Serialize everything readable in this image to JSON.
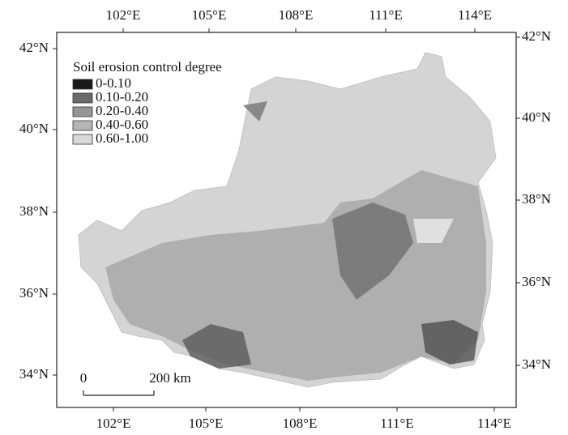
{
  "axes": {
    "top": [
      "102°E",
      "105°E",
      "108°E",
      "111°E",
      "114°E"
    ],
    "bottom": [
      "102°E",
      "105°E",
      "108°E",
      "111°E",
      "114°E"
    ],
    "left": [
      "42°N",
      "40°N",
      "38°N",
      "36°N",
      "34°N"
    ],
    "right": [
      "42°N",
      "40°N",
      "38°N",
      "36°N",
      "34°N"
    ]
  },
  "legend": {
    "title": "Soil erosion control degree",
    "items": [
      {
        "label": "0-0.10",
        "color": "#1a1a1a"
      },
      {
        "label": "0.10-0.20",
        "color": "#6b6b6b"
      },
      {
        "label": "0.20-0.40",
        "color": "#959595"
      },
      {
        "label": "0.40-0.60",
        "color": "#b5b5b5"
      },
      {
        "label": "0.60-1.00",
        "color": "#d9d9d9"
      }
    ]
  },
  "scale_bar": {
    "start": "0",
    "end": "200 km"
  }
}
